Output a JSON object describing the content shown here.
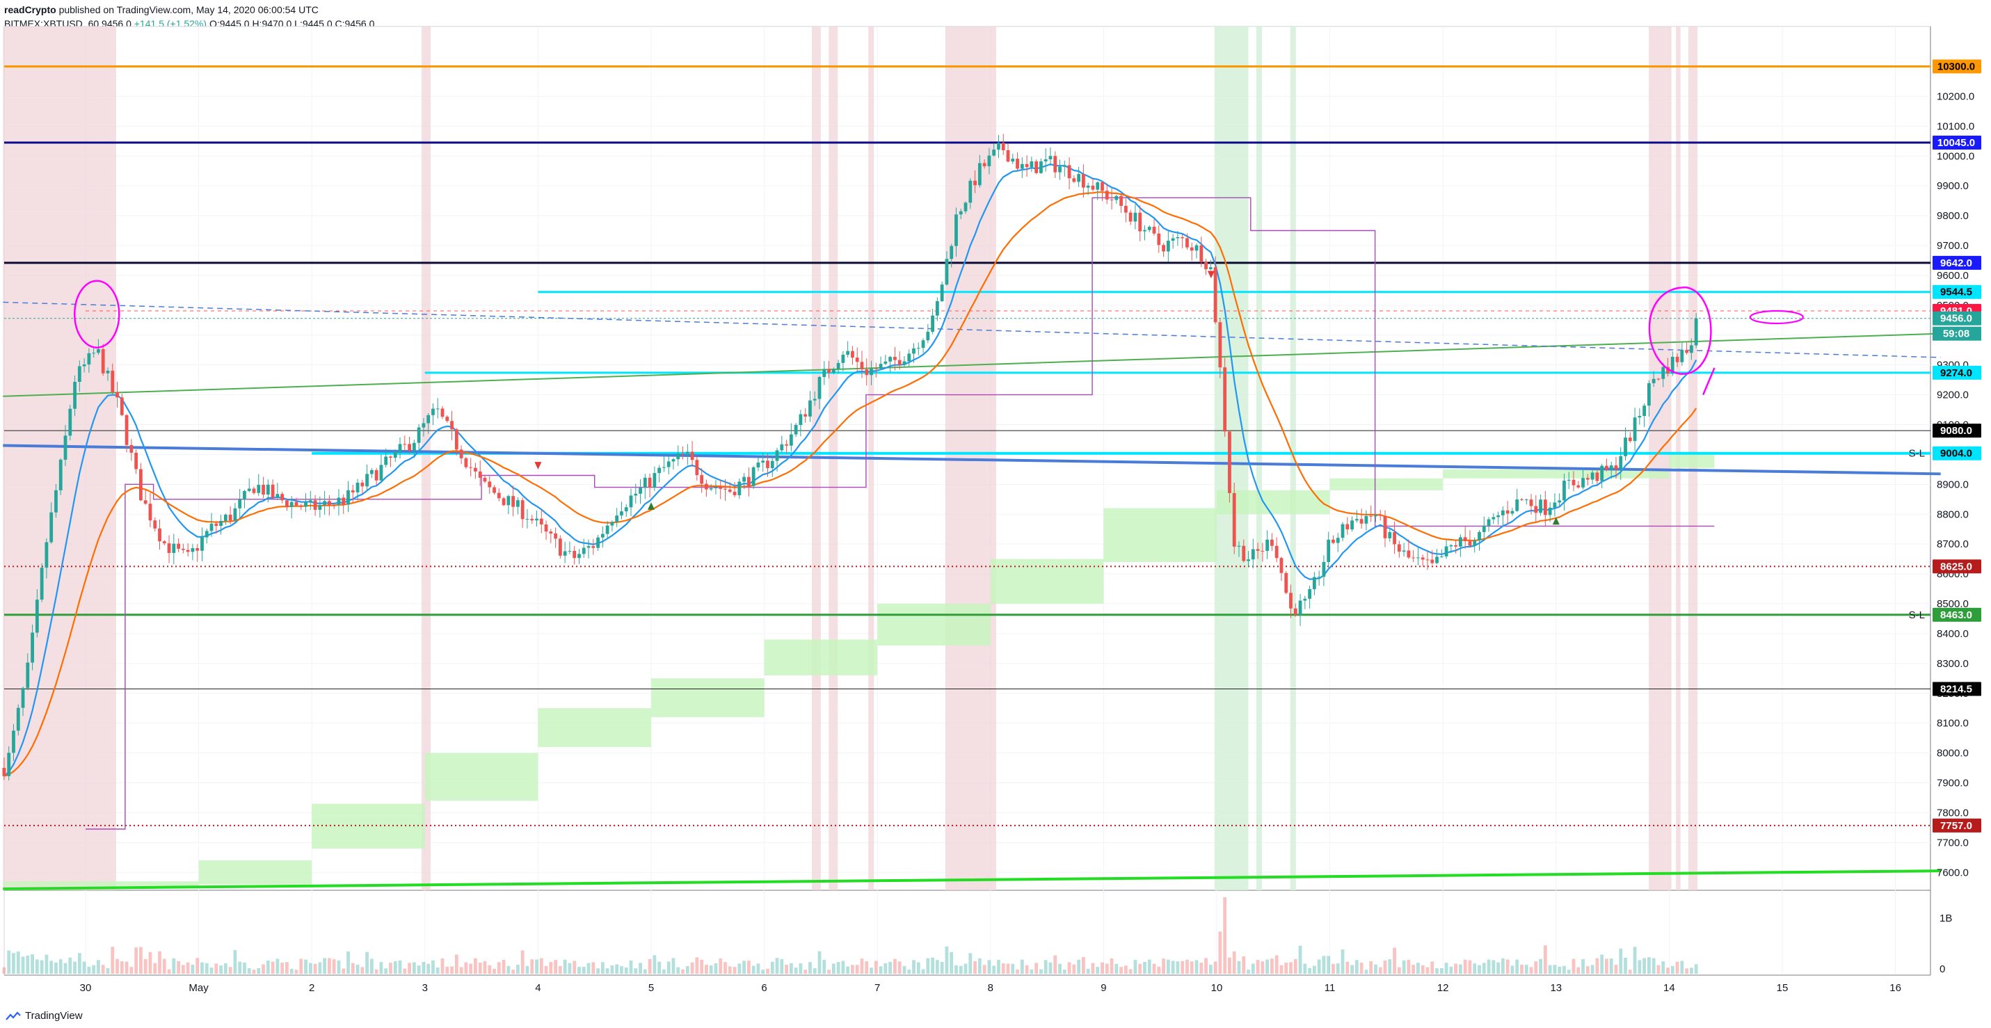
{
  "header": {
    "line1": {
      "author": "readCrypto",
      "rest": " published on TradingView.com, May 14, 2020 06:00:54 UTC"
    },
    "line2": {
      "symbol": "BITMEX:XBTUSD, 60 ",
      "last": "9456.0",
      "change": " +141.5 (+1.52%) ",
      "ohlc": "O:9445.0 H:9470.0 L:9445.0 C:9456.0"
    }
  },
  "footer": {
    "brand": "TradingView"
  },
  "colors": {
    "up": "#26a69a",
    "down": "#ef5350",
    "ema_fast": "#2196f3",
    "ema_slow": "#ff6d00",
    "cloud": "#c8f5c0",
    "session_red": "#f0d6d8",
    "session_green": "#d4f0d8"
  },
  "chart_data": {
    "type": "candlestick",
    "symbol": "BITMEX:XBTUSD",
    "interval": "60",
    "ylim": [
      7540,
      10420
    ],
    "y_ticks": [
      7600,
      7700,
      7800,
      7900,
      8000,
      8100,
      8200,
      8300,
      8400,
      8500,
      8600,
      8700,
      8800,
      8900,
      9000,
      9100,
      9200,
      9300,
      9400,
      9500,
      9600,
      9700,
      9800,
      9900,
      10000,
      10100,
      10200
    ],
    "x_labels": [
      {
        "t": 0,
        "label": "30"
      },
      {
        "t": 1,
        "label": "May"
      },
      {
        "t": 2,
        "label": "2"
      },
      {
        "t": 3,
        "label": "3"
      },
      {
        "t": 4,
        "label": "4"
      },
      {
        "t": 5,
        "label": "5"
      },
      {
        "t": 6,
        "label": "6"
      },
      {
        "t": 7,
        "label": "7"
      },
      {
        "t": 8,
        "label": "8"
      },
      {
        "t": 9,
        "label": "9"
      },
      {
        "t": 10,
        "label": "10"
      },
      {
        "t": 11,
        "label": "11"
      },
      {
        "t": 12,
        "label": "12"
      },
      {
        "t": 13,
        "label": "13"
      },
      {
        "t": 14,
        "label": "14"
      },
      {
        "t": 15,
        "label": "15"
      },
      {
        "t": 16,
        "label": "16"
      }
    ],
    "price_path": [
      [
        -0.7,
        7950
      ],
      [
        -0.5,
        8300
      ],
      [
        -0.35,
        8700
      ],
      [
        -0.2,
        9000
      ],
      [
        -0.1,
        9250
      ],
      [
        0.1,
        9350
      ],
      [
        0.3,
        9150
      ],
      [
        0.5,
        8850
      ],
      [
        0.7,
        8700
      ],
      [
        0.9,
        8650
      ],
      [
        1.1,
        8750
      ],
      [
        1.3,
        8800
      ],
      [
        1.5,
        8900
      ],
      [
        1.7,
        8850
      ],
      [
        2.0,
        8820
      ],
      [
        2.3,
        8850
      ],
      [
        2.6,
        8950
      ],
      [
        2.9,
        9050
      ],
      [
        3.1,
        9150
      ],
      [
        3.3,
        9020
      ],
      [
        3.5,
        8900
      ],
      [
        3.7,
        8850
      ],
      [
        3.9,
        8800
      ],
      [
        4.1,
        8720
      ],
      [
        4.3,
        8650
      ],
      [
        4.5,
        8700
      ],
      [
        4.7,
        8820
      ],
      [
        4.9,
        8880
      ],
      [
        5.1,
        8950
      ],
      [
        5.3,
        9000
      ],
      [
        5.5,
        8900
      ],
      [
        5.7,
        8880
      ],
      [
        5.9,
        8930
      ],
      [
        6.1,
        9000
      ],
      [
        6.3,
        9100
      ],
      [
        6.5,
        9250
      ],
      [
        6.7,
        9350
      ],
      [
        6.9,
        9280
      ],
      [
        7.1,
        9300
      ],
      [
        7.3,
        9350
      ],
      [
        7.5,
        9450
      ],
      [
        7.7,
        9800
      ],
      [
        7.9,
        9950
      ],
      [
        8.1,
        10030
      ],
      [
        8.3,
        9950
      ],
      [
        8.5,
        9980
      ],
      [
        8.7,
        9950
      ],
      [
        8.9,
        9900
      ],
      [
        9.1,
        9850
      ],
      [
        9.3,
        9780
      ],
      [
        9.5,
        9700
      ],
      [
        9.7,
        9720
      ],
      [
        9.85,
        9680
      ],
      [
        9.95,
        9620
      ],
      [
        10.05,
        9200
      ],
      [
        10.15,
        8700
      ],
      [
        10.3,
        8650
      ],
      [
        10.5,
        8720
      ],
      [
        10.65,
        8480
      ],
      [
        10.8,
        8500
      ],
      [
        11.0,
        8700
      ],
      [
        11.2,
        8780
      ],
      [
        11.4,
        8800
      ],
      [
        11.55,
        8700
      ],
      [
        11.7,
        8650
      ],
      [
        11.9,
        8620
      ],
      [
        12.1,
        8700
      ],
      [
        12.3,
        8720
      ],
      [
        12.5,
        8800
      ],
      [
        12.7,
        8850
      ],
      [
        12.9,
        8820
      ],
      [
        13.1,
        8900
      ],
      [
        13.3,
        8920
      ],
      [
        13.5,
        8950
      ],
      [
        13.7,
        9100
      ],
      [
        13.85,
        9250
      ],
      [
        14.0,
        9300
      ],
      [
        14.15,
        9350
      ],
      [
        14.27,
        9456
      ]
    ],
    "horizontal_levels": [
      {
        "value": 10300.0,
        "label": "10300.0",
        "color": "#ff9800",
        "width": 3,
        "x_start": -0.73
      },
      {
        "value": 10045.0,
        "label": "10045.0",
        "color": "#0b0b8a",
        "width": 3,
        "x_start": -0.73,
        "tag": "#1a1aff"
      },
      {
        "value": 9642.0,
        "label": "9642.0",
        "color": "#0b0b33",
        "width": 3,
        "x_start": -0.73,
        "tag": "#1a1aff"
      },
      {
        "value": 9544.5,
        "label": "9544.5",
        "color": "#00e5ff",
        "width": 3,
        "x_start": 4.0,
        "tag": "#00e5ff"
      },
      {
        "value": 9481.0,
        "label": "9481.0",
        "color": "#ff5252",
        "width": 1,
        "dash": "5,5",
        "x_start": 0.0,
        "tag": "#ff1744"
      },
      {
        "value": 9456.0,
        "label": "9456.0",
        "color": "#26a69a",
        "width": 1,
        "dash": "3,3",
        "x_start": -0.73,
        "tag": "#26a69a"
      },
      {
        "value": 9274.0,
        "label": "9274.0",
        "color": "#00e5ff",
        "width": 3,
        "x_start": 3.0,
        "tag": "#00e5ff"
      },
      {
        "value": 9080.0,
        "label": "9080.0",
        "color": "#222222",
        "width": 1,
        "x_start": -0.73,
        "tag": "#000000"
      },
      {
        "value": 9004.0,
        "label": "9004.0",
        "color": "#00e5ff",
        "width": 4,
        "x_start": 2.0,
        "tag": "#00e5ff"
      },
      {
        "value": 8625.0,
        "label": "8625.0",
        "color": "#b71c1c",
        "width": 2,
        "dash": "2,4",
        "x_start": -0.73,
        "tag": "#b71c1c"
      },
      {
        "value": 8463.0,
        "label": "8463.0",
        "color": "#2e9e3a",
        "width": 3,
        "x_start": -0.73,
        "tag": "#2e9e3a"
      },
      {
        "value": 8214.5,
        "label": "8214.5",
        "color": "#222222",
        "width": 1,
        "x_start": -0.73,
        "tag": "#000000"
      },
      {
        "value": 7757.0,
        "label": "7757.0",
        "color": "#b71c1c",
        "width": 2,
        "dash": "2,4",
        "x_start": -0.73,
        "tag": "#b71c1c"
      }
    ],
    "countdown_label": "59:08",
    "sl_labels": [
      {
        "value": 9004.0,
        "text": "S-L"
      },
      {
        "value": 8463.0,
        "text": "S-L"
      }
    ],
    "trendlines": [
      {
        "name": "blue",
        "from": [
          -0.73,
          9030
        ],
        "to": [
          16.4,
          8935
        ],
        "color": "#4a7bd8",
        "width": 4
      },
      {
        "name": "green-upper",
        "from": [
          -0.73,
          9195
        ],
        "to": [
          16.4,
          9405
        ],
        "color": "#4caf50",
        "width": 2
      },
      {
        "name": "green-lower",
        "from": [
          -0.73,
          7545
        ],
        "to": [
          16.4,
          7605
        ],
        "color": "#22dd22",
        "width": 4
      },
      {
        "name": "dashed-blue",
        "from": [
          -0.73,
          9510
        ],
        "to": [
          16.4,
          9325
        ],
        "color": "#4a7bd8",
        "width": 1.5,
        "dash": "8,6"
      }
    ],
    "cloud_steps": [
      [
        -0.73,
        7555,
        7570
      ],
      [
        1.0,
        7560,
        7640
      ],
      [
        2.0,
        7680,
        7830
      ],
      [
        3.0,
        7840,
        8000
      ],
      [
        4.0,
        8020,
        8150
      ],
      [
        5.0,
        8120,
        8250
      ],
      [
        6.0,
        8260,
        8380
      ],
      [
        7.0,
        8360,
        8500
      ],
      [
        8.0,
        8500,
        8650
      ],
      [
        9.0,
        8640,
        8820
      ],
      [
        10.0,
        8800,
        8880
      ],
      [
        11.0,
        8880,
        8920
      ],
      [
        12.0,
        8920,
        8950
      ],
      [
        14.0,
        8955,
        9000
      ],
      [
        14.4,
        8955,
        9000
      ]
    ],
    "sessions_red": [
      [
        -0.73,
        0.27
      ],
      [
        2.97,
        3.05
      ],
      [
        6.42,
        6.5
      ],
      [
        6.57,
        6.65
      ],
      [
        6.92,
        6.97
      ],
      [
        7.6,
        8.05
      ],
      [
        13.82,
        14.02
      ],
      [
        14.06,
        14.1
      ],
      [
        14.17,
        14.25
      ]
    ],
    "sessions_green": [
      [
        9.98,
        10.28
      ],
      [
        10.35,
        10.4
      ],
      [
        10.65,
        10.7
      ]
    ],
    "step_line": [
      [
        0.0,
        7745
      ],
      [
        0.35,
        7745
      ],
      [
        0.35,
        8900
      ],
      [
        0.6,
        8900
      ],
      [
        0.6,
        8850
      ],
      [
        0.8,
        8850
      ],
      [
        3.5,
        8850
      ],
      [
        3.5,
        8930
      ],
      [
        4.5,
        8930
      ],
      [
        4.5,
        8890
      ],
      [
        6.9,
        8890
      ],
      [
        6.9,
        9200
      ],
      [
        8.9,
        9200
      ],
      [
        8.9,
        9860
      ],
      [
        10.3,
        9860
      ],
      [
        10.3,
        9750
      ],
      [
        11.4,
        9750
      ],
      [
        11.4,
        8760
      ],
      [
        14.4,
        8760
      ]
    ]
  }
}
